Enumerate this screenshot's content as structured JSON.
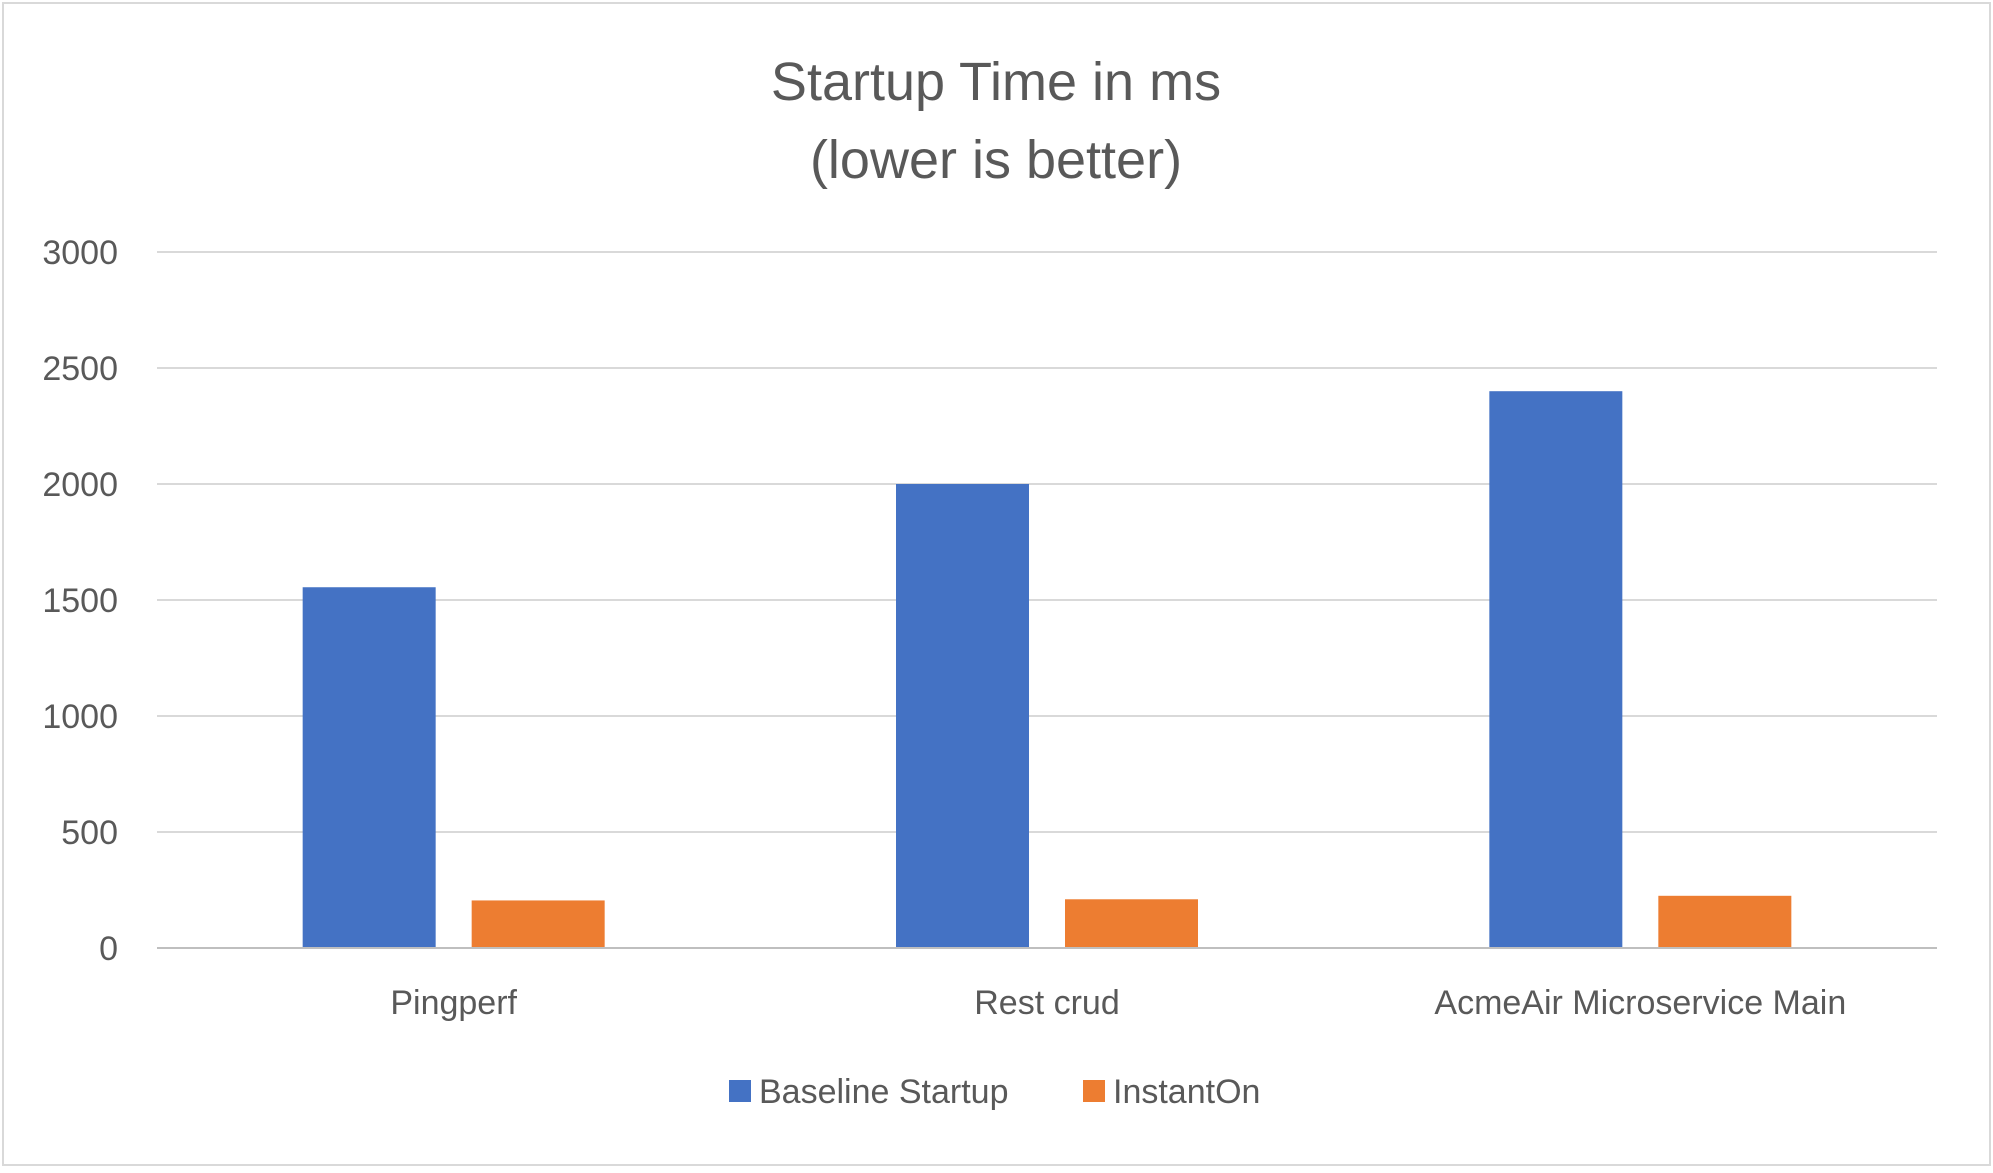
{
  "chart_data": {
    "type": "bar",
    "title": "Startup Time in ms",
    "subtitle": "(lower is better)",
    "xlabel": "",
    "ylabel": "",
    "categories": [
      "Pingperf",
      "Rest crud",
      "AcmeAir Microservice Main"
    ],
    "series": [
      {
        "name": "Baseline Startup",
        "color": "#4472C4",
        "values": [
          1555,
          2000,
          2400
        ]
      },
      {
        "name": "InstantOn",
        "color": "#ED7D31",
        "values": [
          205,
          210,
          225
        ]
      }
    ],
    "ylim": [
      0,
      3000
    ],
    "yticks": [
      "0",
      "500",
      "1000",
      "1500",
      "2000",
      "2500",
      "3000"
    ],
    "grid": true,
    "legend_position": "bottom"
  }
}
